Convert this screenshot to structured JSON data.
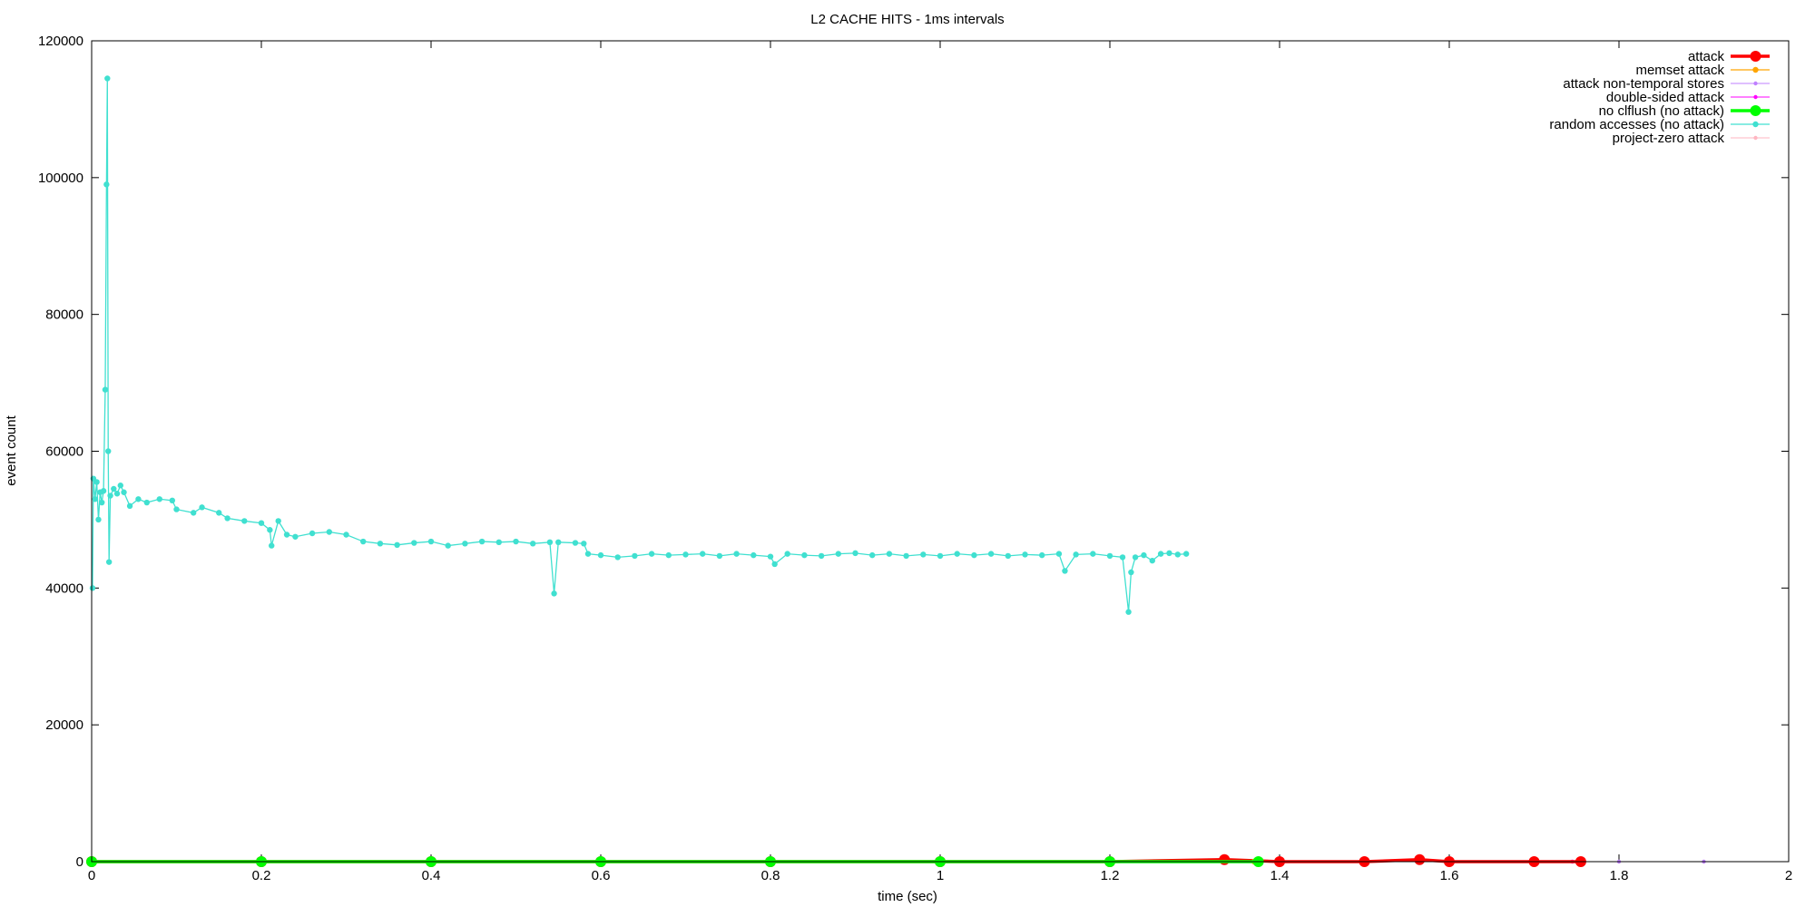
{
  "chart_data": {
    "type": "line",
    "title": "L2 CACHE HITS - 1ms intervals",
    "xlabel": "time (sec)",
    "ylabel": "event count",
    "xlim": [
      0,
      2
    ],
    "ylim": [
      0,
      120000
    ],
    "x_ticks": [
      0,
      0.2,
      0.4,
      0.6,
      0.8,
      1,
      1.2,
      1.4,
      1.6,
      1.8,
      2
    ],
    "x_tick_labels": [
      "0",
      "0.2",
      "0.4",
      "0.6",
      "0.8",
      "1",
      "1.2",
      "1.4",
      "1.6",
      "1.8",
      "2"
    ],
    "y_ticks": [
      0,
      20000,
      40000,
      60000,
      80000,
      100000,
      120000
    ],
    "y_tick_labels": [
      "0",
      "20000",
      "40000",
      "60000",
      "80000",
      "100000",
      "120000"
    ],
    "grid": false,
    "legend_position": "top-right",
    "series": [
      {
        "name": "attack",
        "color": "#ff0000",
        "marker": "large-circle",
        "points": [
          [
            0,
            0
          ],
          [
            0.2,
            0
          ],
          [
            0.4,
            0
          ],
          [
            0.6,
            0
          ],
          [
            0.8,
            0
          ],
          [
            1.0,
            0
          ],
          [
            1.2,
            0
          ],
          [
            1.335,
            300
          ],
          [
            1.4,
            0
          ],
          [
            1.5,
            0
          ],
          [
            1.565,
            300
          ],
          [
            1.6,
            0
          ],
          [
            1.7,
            0
          ],
          [
            1.755,
            0
          ]
        ]
      },
      {
        "name": "memset attack",
        "color": "#ffa500",
        "marker": "circle",
        "points": [
          [
            0,
            0
          ],
          [
            0.4,
            0
          ],
          [
            0.8,
            0
          ],
          [
            1.2,
            0
          ],
          [
            1.37,
            0
          ]
        ]
      },
      {
        "name": "attack non-temporal stores",
        "color": "#bf7fff",
        "marker": "small-circle",
        "points": [
          [
            0,
            0
          ],
          [
            0.4,
            0
          ],
          [
            0.8,
            0
          ],
          [
            1.2,
            0
          ],
          [
            1.5,
            0
          ],
          [
            1.7,
            0
          ],
          [
            1.8,
            0
          ],
          [
            1.9,
            0
          ]
        ]
      },
      {
        "name": "double-sided attack",
        "color": "#ff00ff",
        "marker": "small-circle",
        "points": [
          [
            0,
            0
          ],
          [
            0.4,
            0
          ],
          [
            0.8,
            0
          ],
          [
            1.2,
            0
          ],
          [
            1.5,
            0
          ],
          [
            1.745,
            0
          ]
        ]
      },
      {
        "name": "no clflush (no attack)",
        "color": "#00ff00",
        "marker": "large-circle",
        "points": [
          [
            0,
            0
          ],
          [
            0.2,
            0
          ],
          [
            0.4,
            0
          ],
          [
            0.6,
            0
          ],
          [
            0.8,
            0
          ],
          [
            1.0,
            0
          ],
          [
            1.2,
            0
          ],
          [
            1.375,
            0
          ]
        ]
      },
      {
        "name": "random accesses (no attack)",
        "color": "#40e0d0",
        "marker": "circle",
        "points": [
          [
            0.001,
            40000
          ],
          [
            0.002,
            56000
          ],
          [
            0.004,
            53000
          ],
          [
            0.006,
            55500
          ],
          [
            0.008,
            50000
          ],
          [
            0.01,
            54000
          ],
          [
            0.012,
            52500
          ],
          [
            0.014,
            54200
          ],
          [
            0.016,
            69000
          ],
          [
            0.0175,
            99000
          ],
          [
            0.0185,
            114500
          ],
          [
            0.0195,
            60000
          ],
          [
            0.0205,
            43800
          ],
          [
            0.022,
            53500
          ],
          [
            0.026,
            54500
          ],
          [
            0.03,
            53800
          ],
          [
            0.034,
            55000
          ],
          [
            0.038,
            54000
          ],
          [
            0.045,
            52000
          ],
          [
            0.055,
            53000
          ],
          [
            0.065,
            52500
          ],
          [
            0.08,
            53000
          ],
          [
            0.095,
            52800
          ],
          [
            0.1,
            51500
          ],
          [
            0.12,
            51000
          ],
          [
            0.13,
            51800
          ],
          [
            0.15,
            51000
          ],
          [
            0.16,
            50200
          ],
          [
            0.18,
            49800
          ],
          [
            0.2,
            49500
          ],
          [
            0.21,
            48500
          ],
          [
            0.212,
            46200
          ],
          [
            0.22,
            49800
          ],
          [
            0.23,
            47800
          ],
          [
            0.24,
            47500
          ],
          [
            0.26,
            48000
          ],
          [
            0.28,
            48200
          ],
          [
            0.3,
            47800
          ],
          [
            0.32,
            46800
          ],
          [
            0.34,
            46500
          ],
          [
            0.36,
            46300
          ],
          [
            0.38,
            46600
          ],
          [
            0.4,
            46800
          ],
          [
            0.42,
            46200
          ],
          [
            0.44,
            46500
          ],
          [
            0.46,
            46800
          ],
          [
            0.48,
            46700
          ],
          [
            0.5,
            46800
          ],
          [
            0.52,
            46500
          ],
          [
            0.54,
            46700
          ],
          [
            0.545,
            39200
          ],
          [
            0.55,
            46700
          ],
          [
            0.57,
            46600
          ],
          [
            0.58,
            46500
          ],
          [
            0.585,
            45000
          ],
          [
            0.6,
            44800
          ],
          [
            0.62,
            44500
          ],
          [
            0.64,
            44700
          ],
          [
            0.66,
            45000
          ],
          [
            0.68,
            44800
          ],
          [
            0.7,
            44900
          ],
          [
            0.72,
            45000
          ],
          [
            0.74,
            44700
          ],
          [
            0.76,
            45000
          ],
          [
            0.78,
            44800
          ],
          [
            0.8,
            44600
          ],
          [
            0.805,
            43500
          ],
          [
            0.82,
            45000
          ],
          [
            0.84,
            44800
          ],
          [
            0.86,
            44700
          ],
          [
            0.88,
            45000
          ],
          [
            0.9,
            45100
          ],
          [
            0.92,
            44800
          ],
          [
            0.94,
            45000
          ],
          [
            0.96,
            44700
          ],
          [
            0.98,
            44900
          ],
          [
            1.0,
            44700
          ],
          [
            1.02,
            45000
          ],
          [
            1.04,
            44800
          ],
          [
            1.06,
            45000
          ],
          [
            1.08,
            44700
          ],
          [
            1.1,
            44900
          ],
          [
            1.12,
            44800
          ],
          [
            1.14,
            45000
          ],
          [
            1.147,
            42500
          ],
          [
            1.16,
            44900
          ],
          [
            1.18,
            45000
          ],
          [
            1.2,
            44700
          ],
          [
            1.215,
            44500
          ],
          [
            1.222,
            36500
          ],
          [
            1.225,
            42300
          ],
          [
            1.23,
            44500
          ],
          [
            1.24,
            44800
          ],
          [
            1.25,
            44000
          ],
          [
            1.26,
            45000
          ],
          [
            1.27,
            45100
          ],
          [
            1.28,
            44900
          ],
          [
            1.29,
            45000
          ]
        ]
      },
      {
        "name": "project-zero attack",
        "color": "#ffb6c1",
        "marker": "small-circle",
        "points": []
      }
    ]
  }
}
